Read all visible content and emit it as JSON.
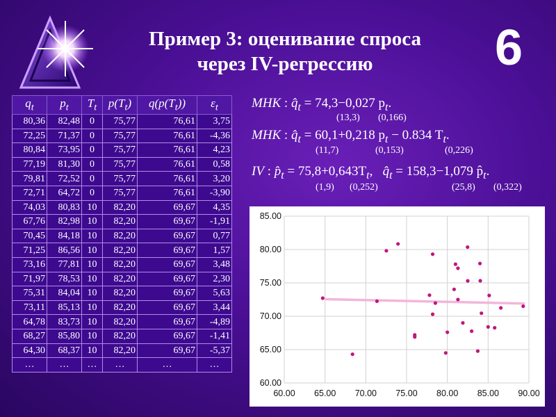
{
  "slide": {
    "title_line1": "Пример 3: оценивание спроса",
    "title_line2": "через IV-регрессию",
    "number": "6",
    "logo_icon": "star-burst-icon"
  },
  "table": {
    "headers": [
      "q_t",
      "p_t",
      "T_t",
      "p(T_t)",
      "q(p(T_t))",
      "ε_t"
    ],
    "rows": [
      [
        "80,36",
        "82,48",
        "0",
        "75,77",
        "76,61",
        "3,75"
      ],
      [
        "72,25",
        "71,37",
        "0",
        "75,77",
        "76,61",
        "-4,36"
      ],
      [
        "80,84",
        "73,95",
        "0",
        "75,77",
        "76,61",
        "4,23"
      ],
      [
        "77,19",
        "81,30",
        "0",
        "75,77",
        "76,61",
        "0,58"
      ],
      [
        "79,81",
        "72,52",
        "0",
        "75,77",
        "76,61",
        "3,20"
      ],
      [
        "72,71",
        "64,72",
        "0",
        "75,77",
        "76,61",
        "-3,90"
      ],
      [
        "74,03",
        "80,83",
        "10",
        "82,20",
        "69,67",
        "4,35"
      ],
      [
        "67,76",
        "82,98",
        "10",
        "82,20",
        "69,67",
        "-1,91"
      ],
      [
        "70,45",
        "84,18",
        "10",
        "82,20",
        "69,67",
        "0,77"
      ],
      [
        "71,25",
        "86,56",
        "10",
        "82,20",
        "69,67",
        "1,57"
      ],
      [
        "73,16",
        "77,81",
        "10",
        "82,20",
        "69,67",
        "3,48"
      ],
      [
        "71,97",
        "78,53",
        "10",
        "82,20",
        "69,67",
        "2,30"
      ],
      [
        "75,31",
        "84,04",
        "10",
        "82,20",
        "69,67",
        "5,63"
      ],
      [
        "73,11",
        "85,13",
        "10",
        "82,20",
        "69,67",
        "3,44"
      ],
      [
        "64,78",
        "83,73",
        "10",
        "82,20",
        "69,67",
        "-4,89"
      ],
      [
        "68,27",
        "85,80",
        "10",
        "82,20",
        "69,67",
        "-1,41"
      ],
      [
        "64,30",
        "68,37",
        "10",
        "82,20",
        "69,67",
        "-5,37"
      ],
      [
        "…",
        "…",
        "…",
        "…",
        "…",
        "…"
      ]
    ]
  },
  "equations": {
    "mlk": {
      "label": "МНК",
      "text": "74,3−0,027 p",
      "se": [
        "(13,3)",
        "(0,166)"
      ]
    },
    "mnk": {
      "label": "МНК",
      "text": "60,1+0,218 p",
      "text2": " − 0.834 T",
      "se": [
        "(11,7)",
        "(0,153)",
        "(0,226)"
      ]
    },
    "iv": {
      "label": "IV",
      "text1": "75,8+0,643T",
      "text2": "158,3−1,079 p̂",
      "se": [
        "(1,9)",
        "(0,252)",
        "(25,8)",
        "(0,322)"
      ]
    }
  },
  "chart_data": {
    "type": "scatter",
    "xlim": [
      60,
      90
    ],
    "ylim": [
      60,
      85
    ],
    "x_ticks": [
      "60.00",
      "65.00",
      "70.00",
      "75.00",
      "80.00",
      "85.00",
      "90.00"
    ],
    "y_ticks": [
      "60.00",
      "65.00",
      "70.00",
      "75.00",
      "80.00",
      "85.00"
    ],
    "grid": true,
    "colors": {
      "points": "#c0167e",
      "fit_line": "#f2b6d9"
    },
    "points": [
      [
        64.72,
        72.71
      ],
      [
        68.37,
        64.3
      ],
      [
        71.37,
        72.25
      ],
      [
        72.52,
        79.81
      ],
      [
        73.95,
        80.84
      ],
      [
        76.0,
        67.2
      ],
      [
        76.0,
        66.9
      ],
      [
        77.81,
        73.16
      ],
      [
        78.2,
        79.3
      ],
      [
        78.2,
        70.3
      ],
      [
        78.53,
        71.97
      ],
      [
        79.8,
        64.5
      ],
      [
        80.0,
        67.6
      ],
      [
        80.83,
        74.03
      ],
      [
        81.0,
        77.8
      ],
      [
        81.3,
        77.19
      ],
      [
        81.3,
        72.5
      ],
      [
        81.9,
        69.0
      ],
      [
        82.48,
        80.36
      ],
      [
        82.98,
        67.76
      ],
      [
        82.5,
        75.3
      ],
      [
        83.73,
        64.78
      ],
      [
        84.04,
        75.31
      ],
      [
        84.0,
        77.9
      ],
      [
        84.18,
        70.45
      ],
      [
        85.13,
        73.11
      ],
      [
        85.0,
        68.4
      ],
      [
        85.8,
        68.27
      ],
      [
        86.56,
        71.25
      ],
      [
        89.3,
        71.5
      ]
    ],
    "fit_line": {
      "x": [
        65,
        89.5
      ],
      "y": [
        72.55,
        71.9
      ]
    }
  }
}
